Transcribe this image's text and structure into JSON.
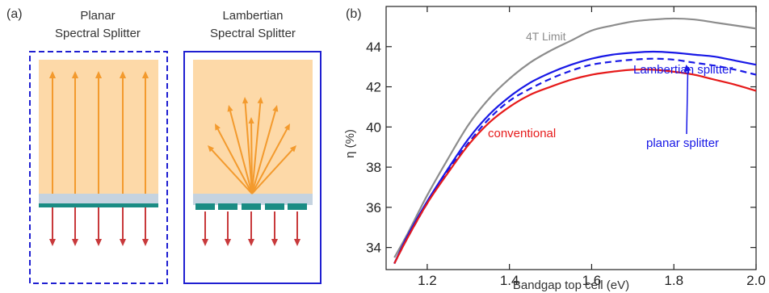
{
  "panel_a": {
    "label": "(a)",
    "left_title": [
      "Planar",
      "Spectral Splitter"
    ],
    "right_title": [
      "Lambertian",
      "Spectral Splitter"
    ]
  },
  "panel_b": {
    "label": "(b)"
  },
  "colors": {
    "panel_frame": "#1f1fd1",
    "top_region": "#fdd9a8",
    "splitter_layer": "#c5d3e0",
    "reflector": "#1a8c84",
    "reflected_arrow": "#f39a2d",
    "transmitted_arrow": "#c8393b",
    "lambertian": "#1818e6",
    "planar": "#1818e6",
    "conventional": "#e61a1a",
    "limit": "#8c8c8c"
  },
  "chart_data": {
    "type": "line",
    "title": "",
    "xlabel": "Bandgap top cell (eV)",
    "ylabel": "η (%)",
    "xlim": [
      1.1,
      2.0
    ],
    "ylim": [
      32.9,
      46.0
    ],
    "xticks": [
      1.2,
      1.4,
      1.6,
      1.8,
      2.0
    ],
    "xtick_labels": [
      "1.2",
      "1.4",
      "1.6",
      "1.8",
      "2.0"
    ],
    "yticks": [
      34,
      36,
      38,
      40,
      42,
      44
    ],
    "ytick_labels": [
      "34",
      "36",
      "38",
      "40",
      "42",
      "44"
    ],
    "grid": false,
    "legend": "labels placed next to curves",
    "x": [
      1.12,
      1.15,
      1.2,
      1.25,
      1.3,
      1.35,
      1.4,
      1.45,
      1.5,
      1.55,
      1.6,
      1.65,
      1.7,
      1.75,
      1.8,
      1.85,
      1.9,
      1.95,
      2.0
    ],
    "series": [
      {
        "name": "4T Limit",
        "color_key": "limit",
        "dash": "solid",
        "values": [
          33.5,
          34.6,
          36.6,
          38.4,
          40.1,
          41.4,
          42.4,
          43.2,
          43.8,
          44.3,
          44.8,
          45.05,
          45.25,
          45.35,
          45.4,
          45.35,
          45.2,
          45.05,
          44.9
        ]
      },
      {
        "name": "Lambertian splitter",
        "color_key": "lambertian",
        "dash": "solid",
        "values": [
          33.2,
          34.5,
          36.3,
          37.9,
          39.4,
          40.6,
          41.5,
          42.2,
          42.7,
          43.1,
          43.4,
          43.6,
          43.7,
          43.75,
          43.7,
          43.6,
          43.5,
          43.3,
          43.1
        ]
      },
      {
        "name": "planar splitter",
        "color_key": "planar",
        "dash": "dashed",
        "values": [
          33.2,
          34.4,
          36.2,
          37.8,
          39.2,
          40.4,
          41.3,
          41.9,
          42.4,
          42.8,
          43.1,
          43.25,
          43.35,
          43.4,
          43.35,
          43.2,
          43.05,
          42.85,
          42.6
        ]
      },
      {
        "name": "conventional",
        "color_key": "conventional",
        "dash": "solid",
        "values": [
          33.2,
          34.4,
          36.2,
          37.7,
          39.1,
          40.2,
          41.0,
          41.6,
          42.0,
          42.35,
          42.6,
          42.75,
          42.85,
          42.85,
          42.75,
          42.6,
          42.35,
          42.1,
          41.8
        ]
      }
    ],
    "annotations": [
      {
        "text": "4T Limit",
        "color_key": "limit"
      },
      {
        "text": "Lambertian splitter",
        "color_key": "lambertian"
      },
      {
        "text": "planar splitter",
        "color_key": "planar",
        "arrow_to_x": 1.83
      },
      {
        "text": "conventional",
        "color_key": "conventional"
      }
    ]
  }
}
